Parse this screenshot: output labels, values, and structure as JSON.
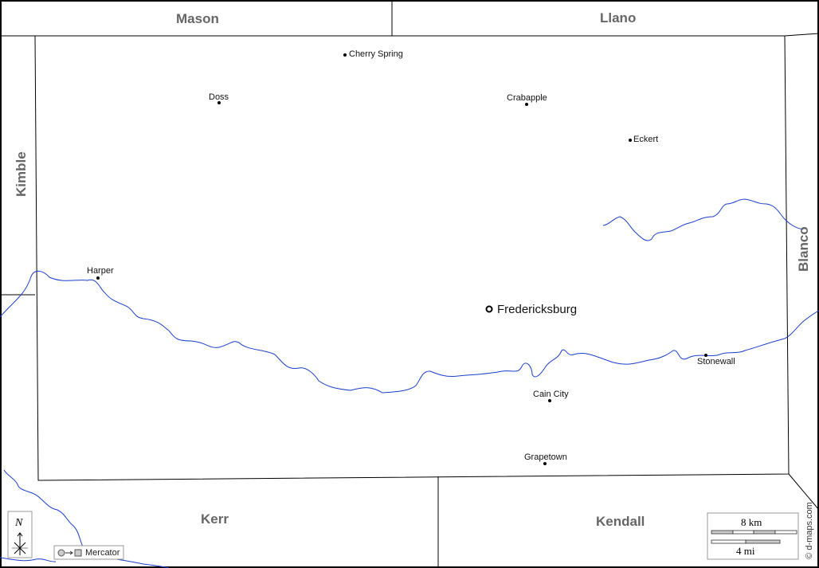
{
  "counties": {
    "mason": "Mason",
    "llano": "Llano",
    "kimble": "Kimble",
    "blanco": "Blanco",
    "kerr": "Kerr",
    "kendall": "Kendall"
  },
  "places": {
    "cherry_spring": "Cherry Spring",
    "doss": "Doss",
    "crabapple": "Crabapple",
    "eckert": "Eckert",
    "harper": "Harper",
    "stonewall": "Stonewall",
    "cain_city": "Cain City",
    "grapetown": "Grapetown"
  },
  "capital": "Fredericksburg",
  "compass": {
    "north_label": "N"
  },
  "projection": {
    "label": "Mercator"
  },
  "scale": {
    "km_label": "8 km",
    "mi_label": "4 mi"
  },
  "credit": "© d-maps.com",
  "colors": {
    "river": "#1a3fcc",
    "border": "#000000",
    "county_label": "#666666"
  }
}
